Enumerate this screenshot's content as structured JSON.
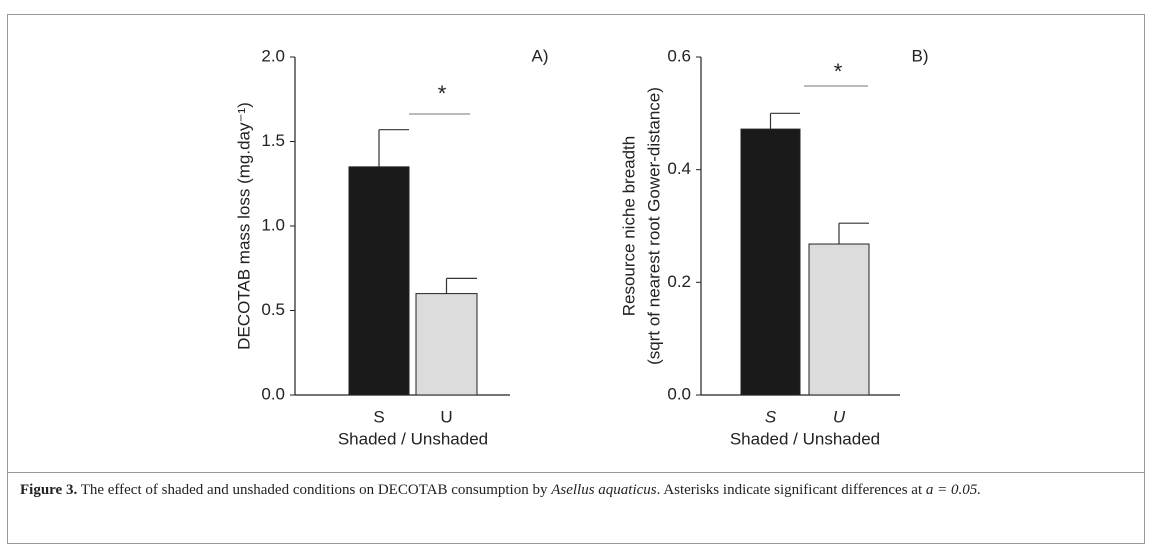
{
  "chart_data": [
    {
      "type": "bar",
      "panel": "A)",
      "annotation": "*",
      "ylabel": "DECOTAB mass loss (mg.day⁻¹)",
      "xlabel": "Shaded / Unshaded",
      "categories": [
        "S",
        "U"
      ],
      "values": [
        1.35,
        0.6
      ],
      "errors": [
        0.22,
        0.09
      ],
      "colors": [
        "#1a1a1a",
        "#dcdcdc"
      ],
      "ylim": [
        0,
        2
      ],
      "yticks": [
        {
          "value": 0,
          "label": "0.0"
        },
        {
          "value": 0.5,
          "label": "0.5"
        },
        {
          "value": 1,
          "label": "1.0"
        },
        {
          "value": 1.5,
          "label": "1.5"
        },
        {
          "value": 2,
          "label": "2.0"
        }
      ]
    },
    {
      "type": "bar",
      "panel": "B)",
      "annotation": "*",
      "ylabel": [
        "Resource niche breadth",
        "(sqrt of nearest root Gower-distance)"
      ],
      "xlabel": "Shaded / Unshaded",
      "categories": [
        "S",
        "U"
      ],
      "values": [
        0.472,
        0.268
      ],
      "errors": [
        0.028,
        0.037
      ],
      "colors": [
        "#1a1a1a",
        "#dcdcdc"
      ],
      "ylim": [
        0,
        0.6
      ],
      "yticks": [
        {
          "value": 0,
          "label": "0.0"
        },
        {
          "value": 0.2,
          "label": "0.2"
        },
        {
          "value": 0.4,
          "label": "0.4"
        },
        {
          "value": 0.6,
          "label": "0.6"
        }
      ]
    }
  ],
  "caption": {
    "label": "Figure 3.",
    "text": "The effect of shaded and unshaded conditions on DECOTAB consumption by ",
    "species": "Asellus aquaticus",
    "text2": ". Asterisks indicate significant differences at ",
    "stat": "a = 0.05."
  }
}
